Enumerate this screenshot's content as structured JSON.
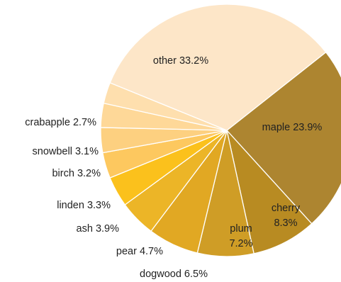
{
  "chart_data": {
    "type": "pie",
    "title": "",
    "start_angle_deg": 51.7,
    "direction": "clockwise",
    "slices": [
      {
        "label": "maple",
        "value": 23.9,
        "color": "#ad8530",
        "label_text": "maple 23.9%"
      },
      {
        "label": "cherry",
        "value": 8.3,
        "color": "#b88b22",
        "label_text": [
          "cherry",
          "8.3%"
        ]
      },
      {
        "label": "plum",
        "value": 7.2,
        "color": "#cf9d26",
        "label_text": [
          "plum",
          "7.2%"
        ]
      },
      {
        "label": "dogwood",
        "value": 6.5,
        "color": "#e1a823",
        "label_text": "dogwood 6.5%"
      },
      {
        "label": "pear",
        "value": 4.7,
        "color": "#ecb527",
        "label_text": "pear 4.7%"
      },
      {
        "label": "ash",
        "value": 3.9,
        "color": "#fbc11c",
        "label_text": "ash 3.9%"
      },
      {
        "label": "linden",
        "value": 3.3,
        "color": "#fdc85f",
        "label_text": "linden 3.3%"
      },
      {
        "label": "birch",
        "value": 3.2,
        "color": "#fdd080",
        "label_text": "birch 3.2%"
      },
      {
        "label": "snowbell",
        "value": 3.1,
        "color": "#fed898",
        "label_text": "snowbell 3.1%"
      },
      {
        "label": "crabapple",
        "value": 2.7,
        "color": "#fedfae",
        "label_text": "crabapple 2.7%"
      },
      {
        "label": "other",
        "value": 33.2,
        "color": "#fde6c8",
        "label_text": "other 33.2%"
      }
    ]
  }
}
